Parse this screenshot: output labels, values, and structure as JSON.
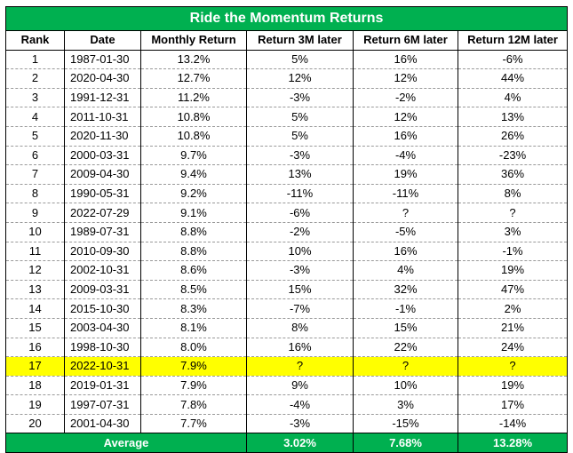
{
  "title": "Ride the Momentum Returns",
  "columns": [
    "Rank",
    "Date",
    "Monthly Return",
    "Return 3M later",
    "Return 6M later",
    "Return 12M later"
  ],
  "rows": [
    {
      "rank": "1",
      "date": "1987-01-30",
      "monthly": "13.2%",
      "r3m": "5%",
      "r6m": "16%",
      "r12m": "-6%"
    },
    {
      "rank": "2",
      "date": "2020-04-30",
      "monthly": "12.7%",
      "r3m": "12%",
      "r6m": "12%",
      "r12m": "44%"
    },
    {
      "rank": "3",
      "date": "1991-12-31",
      "monthly": "11.2%",
      "r3m": "-3%",
      "r6m": "-2%",
      "r12m": "4%"
    },
    {
      "rank": "4",
      "date": "2011-10-31",
      "monthly": "10.8%",
      "r3m": "5%",
      "r6m": "12%",
      "r12m": "13%"
    },
    {
      "rank": "5",
      "date": "2020-11-30",
      "monthly": "10.8%",
      "r3m": "5%",
      "r6m": "16%",
      "r12m": "26%"
    },
    {
      "rank": "6",
      "date": "2000-03-31",
      "monthly": "9.7%",
      "r3m": "-3%",
      "r6m": "-4%",
      "r12m": "-23%"
    },
    {
      "rank": "7",
      "date": "2009-04-30",
      "monthly": "9.4%",
      "r3m": "13%",
      "r6m": "19%",
      "r12m": "36%"
    },
    {
      "rank": "8",
      "date": "1990-05-31",
      "monthly": "9.2%",
      "r3m": "-11%",
      "r6m": "-11%",
      "r12m": "8%"
    },
    {
      "rank": "9",
      "date": "2022-07-29",
      "monthly": "9.1%",
      "r3m": "-6%",
      "r6m": "?",
      "r12m": "?"
    },
    {
      "rank": "10",
      "date": "1989-07-31",
      "monthly": "8.8%",
      "r3m": "-2%",
      "r6m": "-5%",
      "r12m": "3%"
    },
    {
      "rank": "11",
      "date": "2010-09-30",
      "monthly": "8.8%",
      "r3m": "10%",
      "r6m": "16%",
      "r12m": "-1%"
    },
    {
      "rank": "12",
      "date": "2002-10-31",
      "monthly": "8.6%",
      "r3m": "-3%",
      "r6m": "4%",
      "r12m": "19%"
    },
    {
      "rank": "13",
      "date": "2009-03-31",
      "monthly": "8.5%",
      "r3m": "15%",
      "r6m": "32%",
      "r12m": "47%"
    },
    {
      "rank": "14",
      "date": "2015-10-30",
      "monthly": "8.3%",
      "r3m": "-7%",
      "r6m": "-1%",
      "r12m": "2%"
    },
    {
      "rank": "15",
      "date": "2003-04-30",
      "monthly": "8.1%",
      "r3m": "8%",
      "r6m": "15%",
      "r12m": "21%"
    },
    {
      "rank": "16",
      "date": "1998-10-30",
      "monthly": "8.0%",
      "r3m": "16%",
      "r6m": "22%",
      "r12m": "24%"
    },
    {
      "rank": "17",
      "date": "2022-10-31",
      "monthly": "7.9%",
      "r3m": "?",
      "r6m": "?",
      "r12m": "?",
      "highlight": true
    },
    {
      "rank": "18",
      "date": "2019-01-31",
      "monthly": "7.9%",
      "r3m": "9%",
      "r6m": "10%",
      "r12m": "19%"
    },
    {
      "rank": "19",
      "date": "1997-07-31",
      "monthly": "7.8%",
      "r3m": "-4%",
      "r6m": "3%",
      "r12m": "17%"
    },
    {
      "rank": "20",
      "date": "2001-04-30",
      "monthly": "7.7%",
      "r3m": "-3%",
      "r6m": "-15%",
      "r12m": "-14%"
    }
  ],
  "footer": {
    "label": "Average",
    "r3m": "3.02%",
    "r6m": "7.68%",
    "r12m": "13.28%"
  },
  "colors": {
    "header_green": "#00b050",
    "highlight_yellow": "#ffff00"
  }
}
